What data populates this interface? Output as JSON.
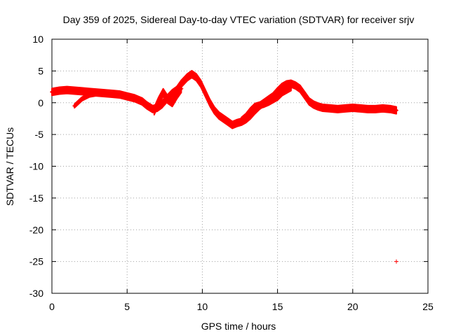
{
  "chart_data": {
    "type": "scatter",
    "title": "Day 359 of 2025, Sidereal Day-to-day VTEC variation (SDTVAR) for receiver srjv",
    "xlabel": "GPS time / hours",
    "ylabel": "SDTVAR / TECUs",
    "xlim": [
      0,
      25
    ],
    "ylim": [
      -30,
      10
    ],
    "xticks": [
      0,
      5,
      10,
      15,
      20,
      25
    ],
    "yticks": [
      10,
      5,
      0,
      -5,
      -10,
      -15,
      -20,
      -25,
      -30
    ],
    "grid": true,
    "marker": "+",
    "series": [
      {
        "name": "SDTVAR",
        "color": "#ff0000",
        "bands": [
          {
            "x": [
              0.0,
              0.5,
              1.0,
              1.5,
              2.0,
              2.5,
              3.0,
              3.5,
              4.0,
              4.5,
              5.0,
              5.5,
              6.0,
              6.3,
              6.7,
              7.0,
              7.3,
              7.6,
              8.0,
              8.3,
              8.6,
              9.0,
              9.3,
              9.6,
              9.9,
              10.2,
              10.5,
              10.8,
              11.1,
              11.4,
              11.7,
              12.0,
              12.3,
              12.6,
              12.9,
              13.2,
              13.5,
              13.8,
              14.1,
              14.4,
              14.7,
              15.0,
              15.3,
              15.6,
              15.9,
              16.2,
              16.5,
              16.8,
              17.1,
              17.4,
              17.7,
              18.0,
              18.5,
              19.0,
              19.5,
              20.0,
              20.5,
              21.0,
              21.5,
              22.0,
              22.5,
              22.9
            ],
            "y": [
              1.7,
              1.9,
              2.0,
              1.9,
              1.8,
              1.7,
              1.6,
              1.5,
              1.4,
              1.3,
              1.0,
              0.7,
              0.2,
              -0.4,
              -1.0,
              -0.8,
              -0.3,
              0.5,
              1.5,
              2.0,
              3.0,
              4.0,
              4.5,
              4.0,
              3.0,
              1.5,
              0.0,
              -1.2,
              -2.0,
              -2.5,
              -3.0,
              -3.5,
              -3.2,
              -3.0,
              -2.6,
              -2.0,
              -1.2,
              -0.5,
              0.0,
              0.5,
              1.0,
              1.8,
              2.5,
              2.9,
              3.0,
              2.7,
              2.2,
              1.2,
              0.2,
              -0.3,
              -0.6,
              -0.8,
              -0.9,
              -1.0,
              -0.9,
              -0.8,
              -0.9,
              -1.0,
              -1.0,
              -0.9,
              -1.0,
              -1.2
            ],
            "spread": 0.55
          },
          {
            "x": [
              1.5,
              2.0,
              2.5,
              3.0,
              3.5,
              4.0
            ],
            "y": [
              -0.5,
              0.6,
              1.2,
              1.4,
              1.4,
              1.3
            ],
            "spread": 0.3
          },
          {
            "x": [
              6.8,
              7.1,
              7.4,
              7.7,
              8.0,
              8.3,
              8.6
            ],
            "y": [
              -1.3,
              0.3,
              1.6,
              0.5,
              0.0,
              1.2,
              2.2
            ],
            "spread": 0.6
          },
          {
            "x": [
              12.6,
              12.9,
              13.2,
              13.5,
              13.8,
              14.1,
              14.4,
              14.7,
              15.0,
              15.3,
              15.6,
              15.9
            ],
            "y": [
              -2.8,
              -2.2,
              -1.3,
              -0.6,
              -0.4,
              -0.2,
              0.1,
              0.5,
              0.9,
              1.6,
              2.0,
              2.4
            ],
            "spread": 0.5
          }
        ],
        "outlier": [
          22.9,
          -25
        ]
      }
    ]
  }
}
